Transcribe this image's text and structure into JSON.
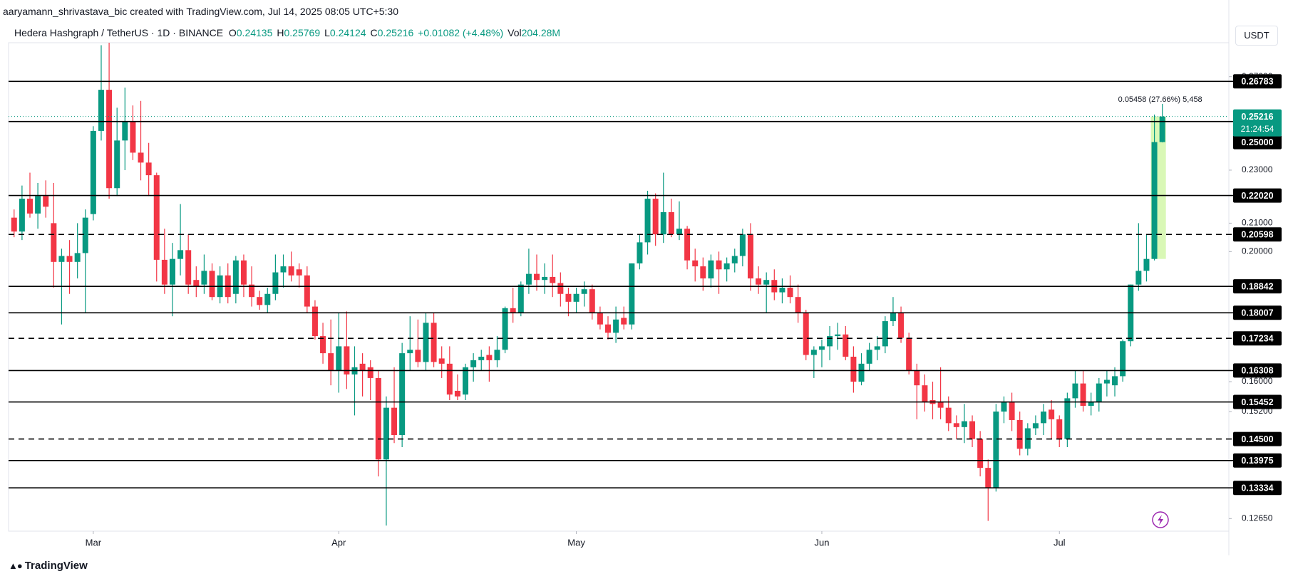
{
  "header": {
    "credit": "aaryamann_shrivastava_bic created with TradingView.com, Jul 14, 2025 08:05 UTC+5:30",
    "symbol": "Hedera Hashgraph / TetherUS · 1D · BINANCE",
    "ohlc": [
      {
        "key": "O",
        "value": "0.24135"
      },
      {
        "key": "H",
        "value": "0.25769"
      },
      {
        "key": "L",
        "value": "0.24124"
      },
      {
        "key": "C",
        "value": "0.25216"
      }
    ],
    "change": "+0.01082 (+4.48%)",
    "volume": {
      "key": "Vol",
      "value": "204.28M"
    },
    "unit": "USDT",
    "brand": "TradingView"
  },
  "chart_data": {
    "type": "candlestick",
    "log_scale": true,
    "grid": false,
    "up_color": "#089981",
    "down_color": "#f23645",
    "xlim": [
      -0.7,
      153.4
    ],
    "xticks": [
      {
        "value": 10,
        "label": "Mar"
      },
      {
        "value": 41,
        "label": "Apr"
      },
      {
        "value": 71,
        "label": "May"
      },
      {
        "value": 102,
        "label": "Jun"
      },
      {
        "value": 132,
        "label": "Jul"
      }
    ],
    "ylim": [
      0.1238,
      0.2862
    ],
    "yticks": [
      {
        "value": 0.27,
        "label": "0.27000"
      },
      {
        "value": 0.23,
        "label": "0.23000"
      },
      {
        "value": 0.21,
        "label": "0.21000"
      },
      {
        "value": 0.2,
        "label": "0.20000"
      },
      {
        "value": 0.16,
        "label": "0.16000"
      },
      {
        "value": 0.152,
        "label": "0.15200"
      },
      {
        "value": 0.1265,
        "label": "0.12650"
      }
    ],
    "open": [
      0.212,
      0.207,
      0.219,
      0.2135,
      0.22,
      0.21,
      0.1965,
      0.1985,
      0.1965,
      0.1995,
      0.2133,
      0.246,
      0.264,
      0.223,
      0.242,
      0.25,
      0.237,
      0.233,
      0.228,
      0.1972,
      0.189,
      0.1975,
      0.2005,
      0.1905,
      0.189,
      0.1935,
      0.185,
      0.192,
      0.186,
      0.197,
      0.189,
      0.185,
      0.1825,
      0.186,
      0.193,
      0.195,
      0.194,
      0.192,
      0.182,
      0.173,
      0.168,
      0.163,
      0.17,
      0.162,
      0.165,
      0.164,
      0.161,
      0.14,
      0.153,
      0.146,
      0.168,
      0.169,
      0.1655,
      0.177,
      0.1665,
      0.165,
      0.1575,
      0.1565,
      0.164,
      0.166,
      0.1675,
      0.166,
      0.169,
      0.1815,
      0.18,
      0.189,
      0.1925,
      0.1905,
      0.1915,
      0.1895,
      0.186,
      0.1835,
      0.186,
      0.1875,
      0.18,
      0.1765,
      0.174,
      0.1785,
      0.1765,
      0.196,
      0.2032,
      0.219,
      0.206,
      0.214,
      0.206,
      0.208,
      0.197,
      0.195,
      0.191,
      0.197,
      0.194,
      0.196,
      0.1985,
      0.206,
      0.191,
      0.189,
      0.1905,
      0.1865,
      0.188,
      0.185,
      0.18,
      0.1675,
      0.169,
      0.17,
      0.173,
      0.1735,
      0.167,
      0.16,
      0.165,
      0.169,
      0.17,
      0.1775,
      0.18,
      0.1725,
      0.1631,
      0.159,
      0.155,
      0.1545,
      0.153,
      0.149,
      0.148,
      0.1495,
      0.145,
      0.138,
      0.1333,
      0.152,
      0.1545,
      0.1498,
      0.1426,
      0.1477,
      0.149,
      0.1525,
      0.15,
      0.145,
      0.1555,
      0.1595,
      0.1535,
      0.1545,
      0.1595,
      0.159,
      0.1615,
      0.1715,
      0.189,
      0.1935,
      0.1975,
      0.24135
    ],
    "high": [
      0.215,
      0.224,
      0.229,
      0.225,
      0.226,
      0.225,
      0.201,
      0.204,
      0.21,
      0.215,
      0.248,
      0.285,
      0.287,
      0.256,
      0.265,
      0.257,
      0.259,
      0.241,
      0.229,
      0.208,
      0.203,
      0.217,
      0.206,
      0.195,
      0.199,
      0.196,
      0.195,
      0.196,
      0.1985,
      0.199,
      0.195,
      0.187,
      0.188,
      0.199,
      0.199,
      0.2,
      0.196,
      0.195,
      0.184,
      0.177,
      0.178,
      0.18,
      0.1805,
      0.17,
      0.168,
      0.166,
      0.163,
      0.156,
      0.164,
      0.171,
      0.179,
      0.178,
      0.18,
      0.18,
      0.17,
      0.17,
      0.162,
      0.165,
      0.168,
      0.169,
      0.17,
      0.173,
      0.182,
      0.188,
      0.19,
      0.201,
      0.199,
      0.196,
      0.199,
      0.193,
      0.188,
      0.188,
      0.19,
      0.189,
      0.182,
      0.179,
      0.182,
      0.182,
      0.196,
      0.206,
      0.222,
      0.221,
      0.229,
      0.219,
      0.218,
      0.209,
      0.201,
      0.198,
      0.199,
      0.2,
      0.198,
      0.201,
      0.208,
      0.21,
      0.195,
      0.193,
      0.194,
      0.191,
      0.192,
      0.189,
      0.181,
      0.17,
      0.172,
      0.176,
      0.177,
      0.176,
      0.17,
      0.168,
      0.171,
      0.173,
      0.179,
      0.185,
      0.182,
      0.174,
      0.165,
      0.162,
      0.16,
      0.164,
      0.156,
      0.151,
      0.154,
      0.151,
      0.147,
      0.14,
      0.154,
      0.156,
      0.157,
      0.152,
      0.149,
      0.151,
      0.154,
      0.155,
      0.151,
      0.157,
      0.163,
      0.163,
      0.157,
      0.161,
      0.163,
      0.164,
      0.172,
      0.189,
      0.21,
      0.206,
      0.253,
      0.25769
    ],
    "low": [
      0.205,
      0.204,
      0.212,
      0.208,
      0.212,
      0.188,
      0.1765,
      0.186,
      0.191,
      0.18,
      0.211,
      0.242,
      0.219,
      0.22,
      0.23,
      0.234,
      0.226,
      0.22,
      0.19,
      0.186,
      0.179,
      0.192,
      0.186,
      0.185,
      0.186,
      0.184,
      0.183,
      0.183,
      0.183,
      0.185,
      0.182,
      0.181,
      0.18,
      0.184,
      0.188,
      0.19,
      0.188,
      0.18,
      0.172,
      0.165,
      0.159,
      0.157,
      0.158,
      0.151,
      0.156,
      0.155,
      0.136,
      0.125,
      0.144,
      0.143,
      0.163,
      0.164,
      0.163,
      0.164,
      0.161,
      0.155,
      0.155,
      0.155,
      0.16,
      0.163,
      0.16,
      0.164,
      0.168,
      0.177,
      0.179,
      0.186,
      0.187,
      0.186,
      0.185,
      0.182,
      0.179,
      0.18,
      0.182,
      0.178,
      0.175,
      0.172,
      0.171,
      0.175,
      0.175,
      0.194,
      0.199,
      0.202,
      0.203,
      0.205,
      0.204,
      0.194,
      0.19,
      0.187,
      0.188,
      0.186,
      0.19,
      0.193,
      0.195,
      0.187,
      0.186,
      0.18,
      0.184,
      0.183,
      0.183,
      0.177,
      0.166,
      0.161,
      0.164,
      0.166,
      0.169,
      0.166,
      0.157,
      0.159,
      0.163,
      0.166,
      0.168,
      0.176,
      0.171,
      0.162,
      0.15,
      0.152,
      0.15,
      0.15,
      0.147,
      0.145,
      0.144,
      0.143,
      0.136,
      0.126,
      0.1325,
      0.149,
      0.147,
      0.141,
      0.141,
      0.146,
      0.146,
      0.145,
      0.143,
      0.143,
      0.153,
      0.152,
      0.151,
      0.152,
      0.156,
      0.156,
      0.16,
      0.17,
      0.187,
      0.19,
      0.197,
      0.24124
    ],
    "close": [
      0.207,
      0.219,
      0.2135,
      0.22,
      0.216,
      0.1965,
      0.1985,
      0.1965,
      0.1995,
      0.212,
      0.246,
      0.264,
      0.223,
      0.242,
      0.25,
      0.237,
      0.233,
      0.228,
      0.1972,
      0.189,
      0.1975,
      0.2005,
      0.189,
      0.1885,
      0.1935,
      0.185,
      0.192,
      0.185,
      0.197,
      0.189,
      0.185,
      0.1825,
      0.186,
      0.193,
      0.195,
      0.192,
      0.192,
      0.182,
      0.173,
      0.168,
      0.163,
      0.17,
      0.162,
      0.164,
      0.163,
      0.161,
      0.14,
      0.153,
      0.146,
      0.168,
      0.169,
      0.1655,
      0.177,
      0.1655,
      0.165,
      0.1565,
      0.156,
      0.164,
      0.166,
      0.167,
      0.166,
      0.169,
      0.1815,
      0.18,
      0.189,
      0.1925,
      0.1905,
      0.1915,
      0.1895,
      0.186,
      0.1835,
      0.186,
      0.1875,
      0.18,
      0.1765,
      0.174,
      0.178,
      0.1765,
      0.196,
      0.2032,
      0.219,
      0.206,
      0.214,
      0.206,
      0.208,
      0.197,
      0.195,
      0.191,
      0.197,
      0.194,
      0.196,
      0.1985,
      0.206,
      0.191,
      0.189,
      0.1905,
      0.1865,
      0.188,
      0.185,
      0.18,
      0.1675,
      0.169,
      0.17,
      0.173,
      0.1735,
      0.167,
      0.16,
      0.165,
      0.169,
      0.17,
      0.1775,
      0.18,
      0.1725,
      0.1631,
      0.159,
      0.1545,
      0.154,
      0.153,
      0.149,
      0.148,
      0.1495,
      0.145,
      0.138,
      0.1333,
      0.152,
      0.1545,
      0.1498,
      0.1426,
      0.1477,
      0.149,
      0.152,
      0.15,
      0.145,
      0.1555,
      0.1595,
      0.1535,
      0.1545,
      0.1595,
      0.1605,
      0.1615,
      0.1715,
      0.189,
      0.1935,
      0.1975,
      0.24135,
      0.25216
    ],
    "levels": [
      {
        "value": 0.26783,
        "label": "0.26783",
        "style": "solid"
      },
      {
        "value": 0.25,
        "label": "0.25000",
        "style": "solid"
      },
      {
        "value": 0.2202,
        "label": "0.22020",
        "style": "solid"
      },
      {
        "value": 0.20598,
        "label": "0.20598",
        "style": "dashed"
      },
      {
        "value": 0.18842,
        "label": "0.18842",
        "style": "solid"
      },
      {
        "value": 0.18007,
        "label": "0.18007",
        "style": "solid"
      },
      {
        "value": 0.17234,
        "label": "0.17234",
        "style": "dashed"
      },
      {
        "value": 0.16308,
        "label": "0.16308",
        "style": "solid"
      },
      {
        "value": 0.15452,
        "label": "0.15452",
        "style": "solid"
      },
      {
        "value": 0.145,
        "label": "0.14500",
        "style": "dashed"
      },
      {
        "value": 0.13975,
        "label": "0.13975",
        "style": "solid"
      },
      {
        "value": 0.13334,
        "label": "0.13334",
        "style": "solid"
      }
    ],
    "last_price": {
      "value": 0.25216,
      "label": "0.25216",
      "countdown": "21:24:54"
    },
    "measure_label": "0.05458 (27.66%) 5,458"
  }
}
